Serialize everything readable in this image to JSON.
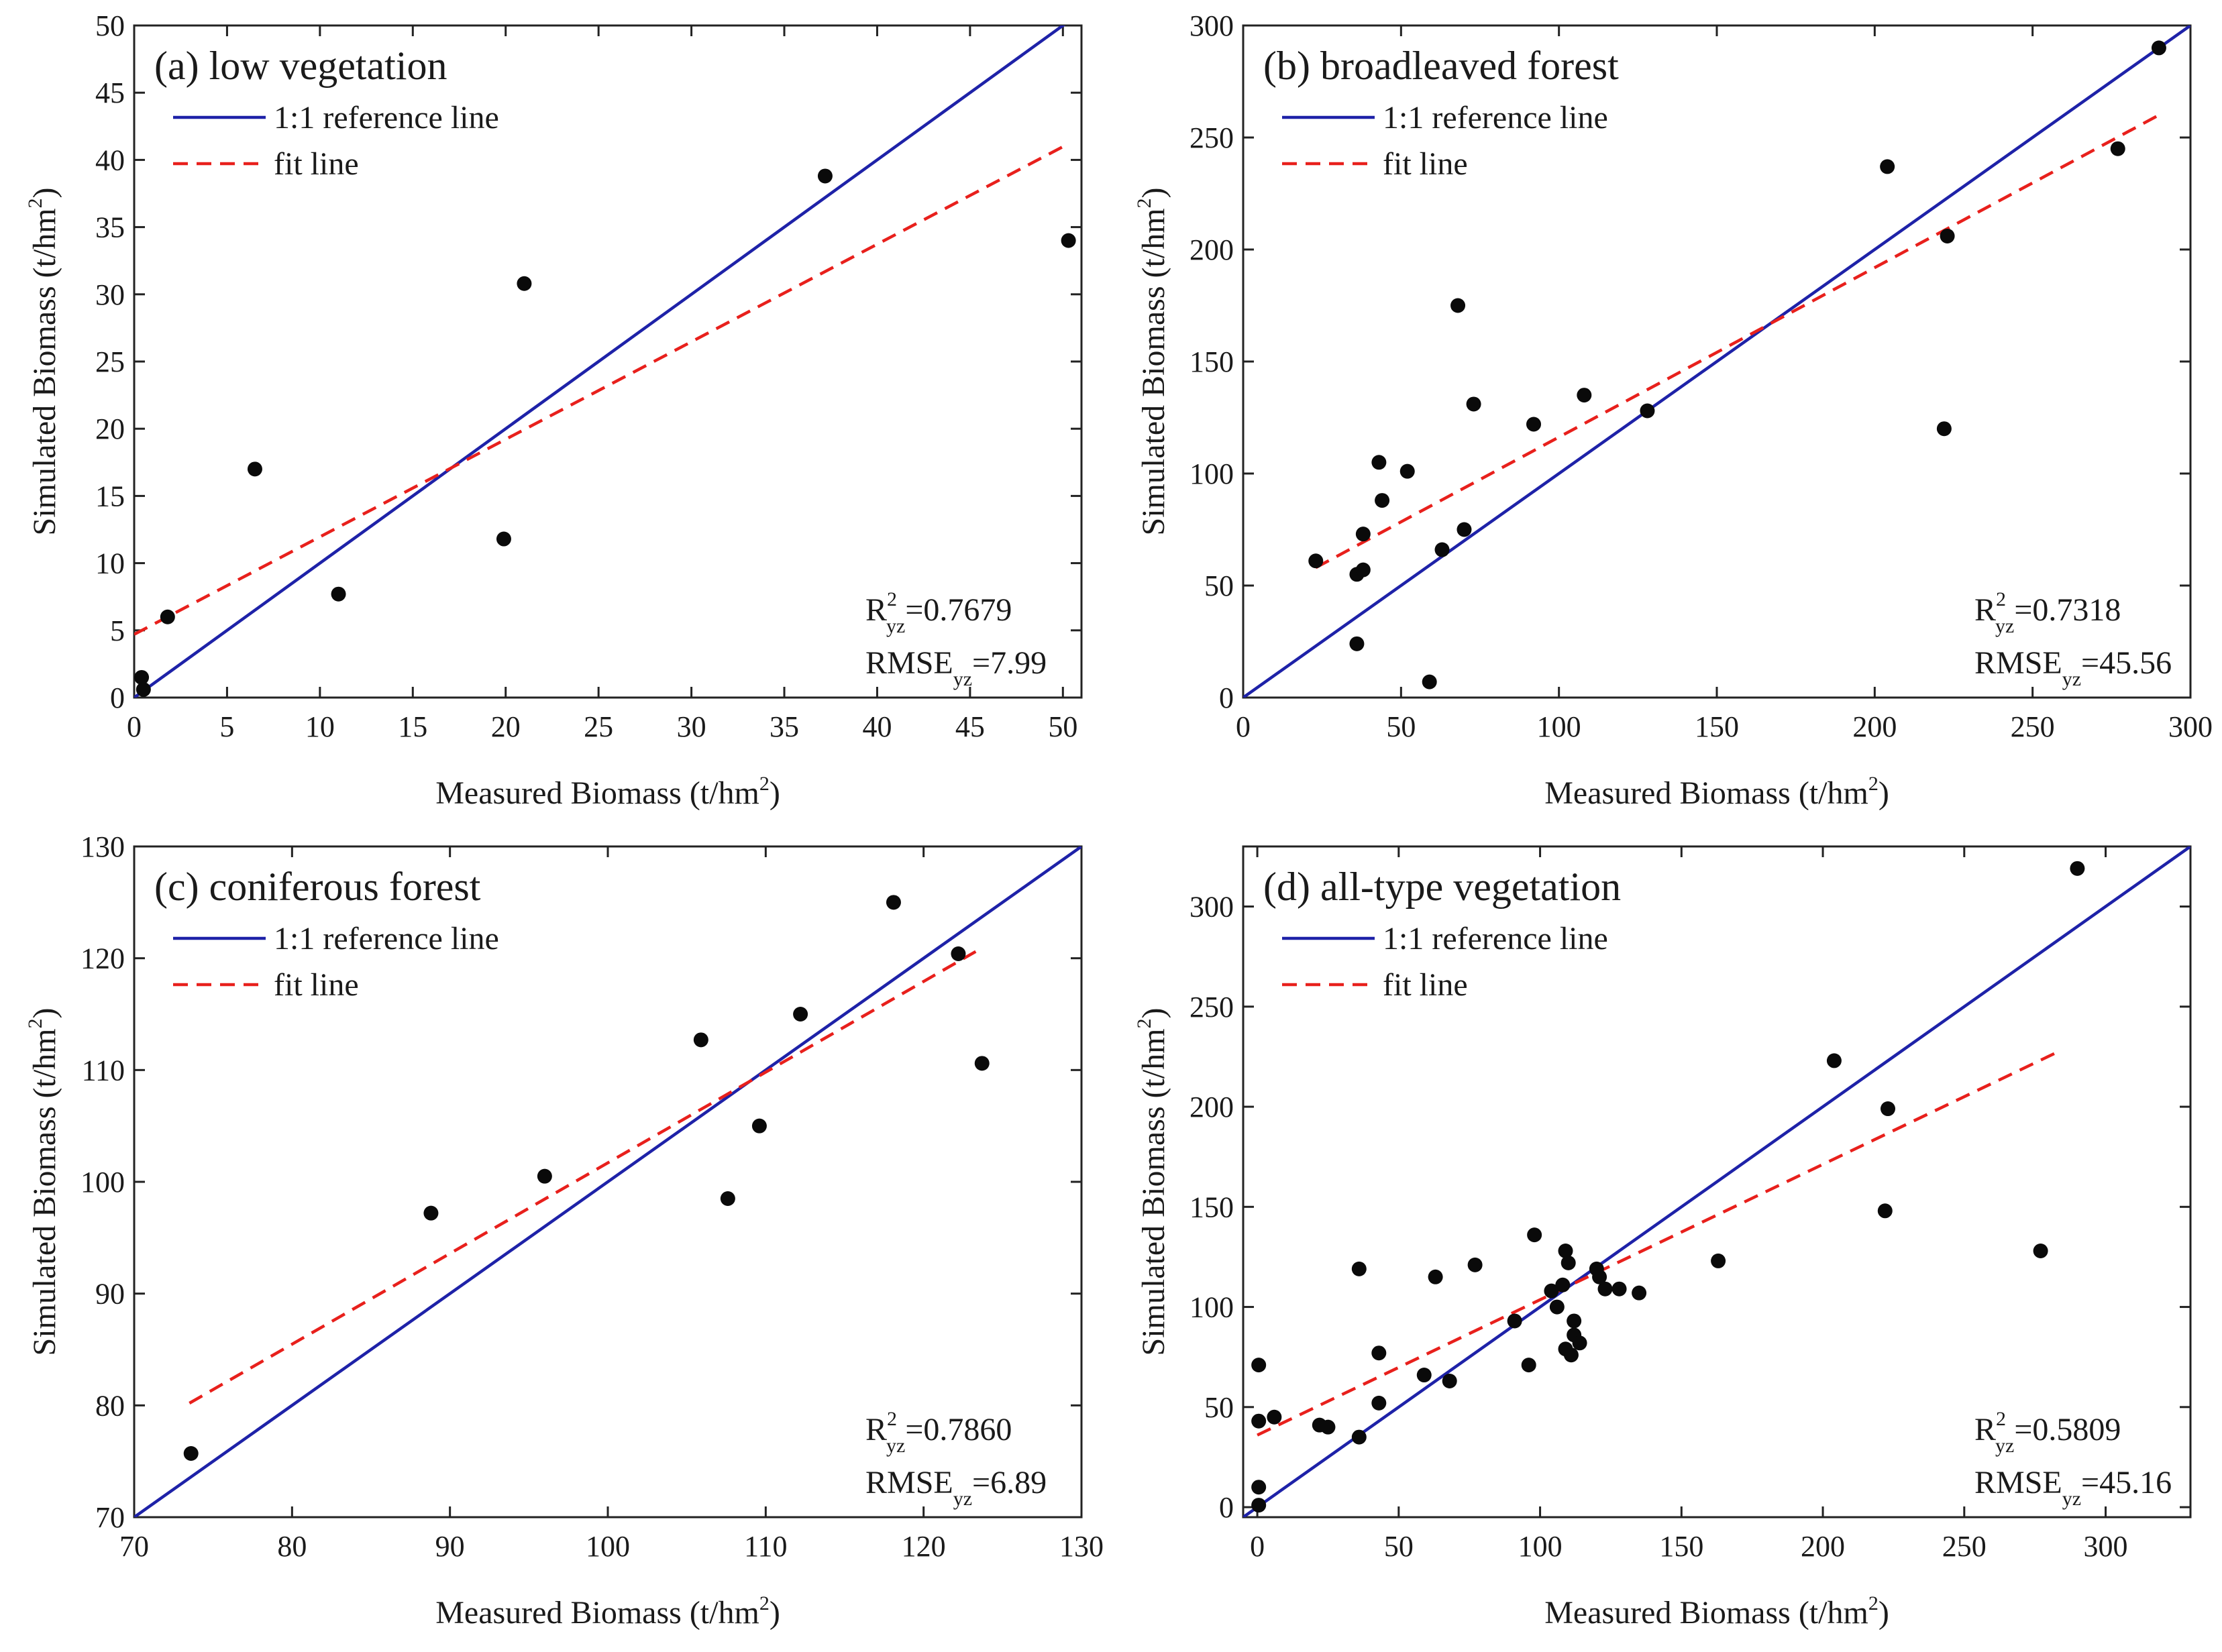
{
  "chart_data": [
    {
      "type": "scatter",
      "title": "(a) low vegetation",
      "xlabel": "Measured Biomass (t/hm",
      "ylabel": "Simulated Biomass (t/hm",
      "unit_exponent": "2",
      "unit_close": ")",
      "xlim": [
        0,
        51
      ],
      "ylim": [
        0,
        50
      ],
      "xticks": [
        0,
        5,
        10,
        15,
        20,
        25,
        30,
        35,
        40,
        45,
        50
      ],
      "yticks": [
        0,
        5,
        10,
        15,
        20,
        25,
        30,
        35,
        40,
        45,
        50
      ],
      "legend": {
        "ref": "1:1 reference line",
        "fit": "fit line"
      },
      "ref_line": [
        [
          0,
          0
        ],
        [
          51,
          51
        ]
      ],
      "fit_line": [
        [
          0,
          4.7
        ],
        [
          50.3,
          41.2
        ]
      ],
      "stats": {
        "r2_label": "R",
        "r2_value": "=0.7679",
        "rmse_label": "RMSE",
        "rmse_value": "=7.99",
        "sup": "2",
        "sub": "yz"
      },
      "points": [
        [
          0.4,
          1.5
        ],
        [
          0.5,
          0.6
        ],
        [
          1.8,
          6.0
        ],
        [
          6.5,
          17.0
        ],
        [
          11.0,
          7.7
        ],
        [
          19.9,
          11.8
        ],
        [
          21.0,
          30.8
        ],
        [
          37.2,
          38.8
        ],
        [
          50.3,
          34.0
        ]
      ]
    },
    {
      "type": "scatter",
      "title": "(b) broadleaved forest",
      "xlabel": "Measured Biomass (t/hm",
      "ylabel": "Simulated Biomass (t/hm",
      "unit_exponent": "2",
      "unit_close": ")",
      "xlim": [
        0,
        300
      ],
      "ylim": [
        0,
        300
      ],
      "xticks": [
        0,
        50,
        100,
        150,
        200,
        250,
        300
      ],
      "yticks": [
        0,
        50,
        100,
        150,
        200,
        250,
        300
      ],
      "legend": {
        "ref": "1:1 reference line",
        "fit": "fit line"
      },
      "ref_line": [
        [
          0,
          0
        ],
        [
          300,
          300
        ]
      ],
      "fit_line": [
        [
          23,
          58
        ],
        [
          290,
          260
        ]
      ],
      "stats": {
        "r2_label": "R",
        "r2_value": "=0.7318",
        "rmse_label": "RMSE",
        "rmse_value": "=45.56",
        "sup": "2",
        "sub": "yz"
      },
      "points": [
        [
          23,
          61
        ],
        [
          36,
          24
        ],
        [
          36,
          55
        ],
        [
          38,
          57
        ],
        [
          38,
          73
        ],
        [
          43,
          105
        ],
        [
          44,
          88
        ],
        [
          52,
          101
        ],
        [
          59,
          7
        ],
        [
          63,
          66
        ],
        [
          68,
          175
        ],
        [
          70,
          75
        ],
        [
          73,
          131
        ],
        [
          92,
          122
        ],
        [
          108,
          135
        ],
        [
          128,
          128
        ],
        [
          204,
          237
        ],
        [
          222,
          120
        ],
        [
          223,
          206
        ],
        [
          277,
          245
        ],
        [
          290,
          290
        ]
      ]
    },
    {
      "type": "scatter",
      "title": "(c) coniferous forest",
      "xlabel": "Measured Biomass (t/hm",
      "ylabel": "Simulated Biomass (t/hm",
      "unit_exponent": "2",
      "unit_close": ")",
      "xlim": [
        70,
        130
      ],
      "ylim": [
        70,
        130
      ],
      "xticks": [
        70,
        80,
        90,
        100,
        110,
        120,
        130
      ],
      "yticks": [
        70,
        80,
        90,
        100,
        110,
        120,
        130
      ],
      "legend": {
        "ref": "1:1 reference line",
        "fit": "fit line"
      },
      "ref_line": [
        [
          70,
          70
        ],
        [
          130,
          130
        ]
      ],
      "fit_line": [
        [
          73.5,
          80.2
        ],
        [
          123.3,
          120.6
        ]
      ],
      "stats": {
        "r2_label": "R",
        "r2_value": "=0.7860",
        "rmse_label": "RMSE",
        "rmse_value": "=6.89",
        "sup": "2",
        "sub": "yz"
      },
      "points": [
        [
          73.6,
          75.7
        ],
        [
          88.8,
          97.2
        ],
        [
          96.0,
          100.5
        ],
        [
          105.9,
          112.7
        ],
        [
          107.6,
          98.5
        ],
        [
          109.6,
          105.0
        ],
        [
          112.2,
          115.0
        ],
        [
          118.1,
          125.0
        ],
        [
          122.2,
          120.4
        ],
        [
          123.7,
          110.6
        ]
      ]
    },
    {
      "type": "scatter",
      "title": "(d) all-type vegetation",
      "xlabel": "Measured Biomass (t/hm",
      "ylabel": "Simulated Biomass (t/hm",
      "unit_exponent": "2",
      "unit_close": ")",
      "xlim": [
        -5,
        330
      ],
      "ylim": [
        -5,
        330
      ],
      "xticks": [
        0,
        50,
        100,
        150,
        200,
        250,
        300
      ],
      "yticks": [
        0,
        50,
        100,
        150,
        200,
        250,
        300
      ],
      "legend": {
        "ref": "1:1 reference line",
        "fit": "fit line"
      },
      "ref_line": [
        [
          -5,
          -5
        ],
        [
          330,
          330
        ]
      ],
      "fit_line": [
        [
          0,
          36
        ],
        [
          284,
          228
        ]
      ],
      "stats": {
        "r2_label": "R",
        "r2_value": "=0.5809",
        "rmse_label": "RMSE",
        "rmse_value": "=45.16",
        "sup": "2",
        "sub": "yz"
      },
      "points": [
        [
          0.5,
          71
        ],
        [
          0.5,
          43
        ],
        [
          0.5,
          10
        ],
        [
          0.5,
          1
        ],
        [
          6,
          45
        ],
        [
          22,
          41
        ],
        [
          25,
          40
        ],
        [
          36,
          35
        ],
        [
          36,
          119
        ],
        [
          43,
          77
        ],
        [
          43,
          52
        ],
        [
          59,
          66
        ],
        [
          63,
          115
        ],
        [
          68,
          63
        ],
        [
          77,
          121
        ],
        [
          91,
          93
        ],
        [
          96,
          71
        ],
        [
          98,
          136
        ],
        [
          104,
          108
        ],
        [
          106,
          100
        ],
        [
          108,
          111
        ],
        [
          109,
          79
        ],
        [
          109,
          128
        ],
        [
          110,
          122
        ],
        [
          111,
          76
        ],
        [
          112,
          86
        ],
        [
          112,
          93
        ],
        [
          114,
          82
        ],
        [
          120,
          119
        ],
        [
          121,
          115
        ],
        [
          123,
          109
        ],
        [
          128,
          109
        ],
        [
          135,
          107
        ],
        [
          163,
          123
        ],
        [
          204,
          223
        ],
        [
          222,
          148
        ],
        [
          223,
          199
        ],
        [
          277,
          128
        ],
        [
          290,
          319
        ]
      ]
    }
  ]
}
